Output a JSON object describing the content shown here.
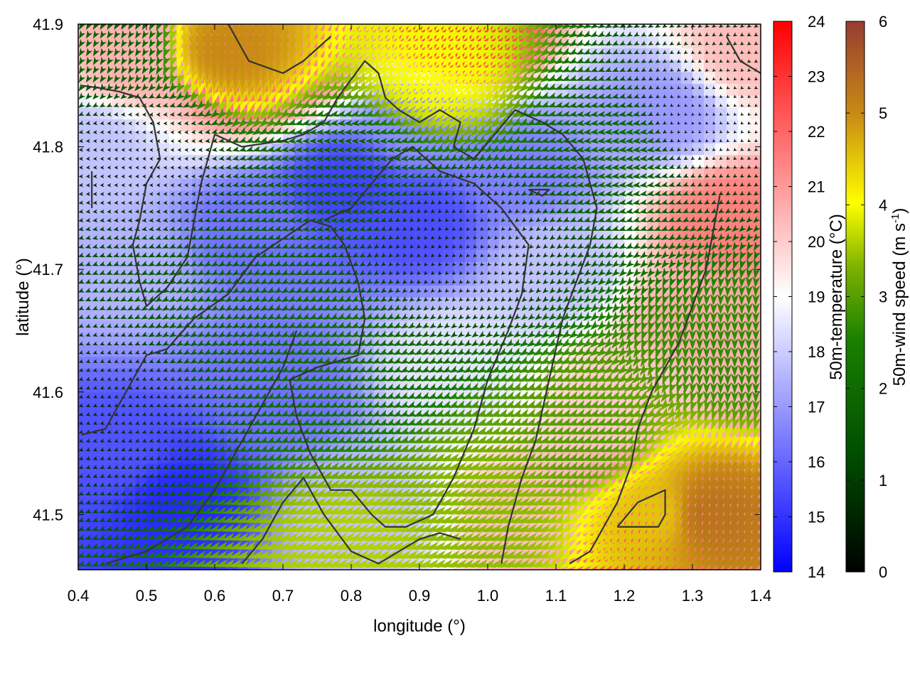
{
  "chart_data": {
    "type": "heatmap",
    "title": "",
    "xlabel": "longitude (°)",
    "ylabel": "latitude (°)",
    "xlim": [
      0.4,
      1.4
    ],
    "ylim": [
      41.455,
      41.9
    ],
    "x_ticks": [
      "0.4",
      "0.5",
      "0.6",
      "0.7",
      "0.8",
      "0.9",
      "1.0",
      "1.1",
      "1.2",
      "1.3",
      "1.4"
    ],
    "y_ticks": [
      "41.5",
      "41.6",
      "41.7",
      "41.8",
      "41.9"
    ],
    "temperature_colorbar": {
      "label": "50m-temperature (°C)",
      "range": [
        14,
        24
      ],
      "ticks": [
        "14",
        "15",
        "16",
        "17",
        "18",
        "19",
        "20",
        "21",
        "22",
        "23",
        "24"
      ],
      "colors": [
        "#0000ff",
        "#ffffff",
        "#ff0000"
      ]
    },
    "wind_colorbar": {
      "label": "50m-wind speed (m s",
      "label_superscript": "-1",
      "label_end": ")",
      "range": [
        0,
        6
      ],
      "ticks": [
        "0",
        "1",
        "2",
        "3",
        "4",
        "5",
        "6"
      ],
      "colors": [
        "#000000",
        "#005000",
        "#008000",
        "#ffff00",
        "#c86414",
        "#963c32"
      ]
    },
    "temperature_field_anomalies": [
      {
        "lon": 0.55,
        "lat": 41.51,
        "value": 14.8
      },
      {
        "lon": 0.45,
        "lat": 41.55,
        "value": 15.6
      },
      {
        "lon": 0.7,
        "lat": 41.6,
        "value": 16.2
      },
      {
        "lon": 0.79,
        "lat": 41.77,
        "value": 15.3
      },
      {
        "lon": 0.9,
        "lat": 41.74,
        "value": 15.5
      },
      {
        "lon": 0.65,
        "lat": 41.73,
        "value": 16.2
      },
      {
        "lon": 0.47,
        "lat": 41.7,
        "value": 17.5
      },
      {
        "lon": 0.42,
        "lat": 41.8,
        "value": 17.8
      },
      {
        "lon": 0.9,
        "lat": 41.82,
        "value": 16.8
      },
      {
        "lon": 1.05,
        "lat": 41.78,
        "value": 16.5
      },
      {
        "lon": 1.25,
        "lat": 41.83,
        "value": 17.0
      },
      {
        "lon": 1.1,
        "lat": 41.7,
        "value": 17.8
      },
      {
        "lon": 0.8,
        "lat": 41.5,
        "value": 17.8
      },
      {
        "lon": 0.95,
        "lat": 41.62,
        "value": 18.5
      },
      {
        "lon": 0.65,
        "lat": 41.86,
        "value": 21.8
      },
      {
        "lon": 0.72,
        "lat": 41.88,
        "value": 21.4
      },
      {
        "lon": 0.96,
        "lat": 41.89,
        "value": 22.8
      },
      {
        "lon": 0.48,
        "lat": 41.87,
        "value": 20.5
      },
      {
        "lon": 1.35,
        "lat": 41.74,
        "value": 21.5
      },
      {
        "lon": 1.3,
        "lat": 41.66,
        "value": 20.6
      },
      {
        "lon": 1.2,
        "lat": 41.6,
        "value": 20.0
      },
      {
        "lon": 1.28,
        "lat": 41.5,
        "value": 21.4
      },
      {
        "lon": 1.22,
        "lat": 41.47,
        "value": 22.3
      },
      {
        "lon": 1.08,
        "lat": 41.5,
        "value": 20.3
      },
      {
        "lon": 1.38,
        "lat": 41.88,
        "value": 20.3
      }
    ],
    "wind_zones": [
      {
        "lon": 0.92,
        "lat": 41.86,
        "speed": 4.0,
        "dir_deg": 230
      },
      {
        "lon": 0.62,
        "lat": 41.88,
        "speed": 5.0,
        "dir_deg": 270
      },
      {
        "lon": 0.8,
        "lat": 41.47,
        "speed": 3.6,
        "dir_deg": 190
      },
      {
        "lon": 1.0,
        "lat": 41.5,
        "speed": 3.4,
        "dir_deg": 190
      },
      {
        "lon": 1.25,
        "lat": 41.5,
        "speed": 4.5,
        "dir_deg": 235
      },
      {
        "lon": 1.32,
        "lat": 41.5,
        "speed": 5.3,
        "dir_deg": 240
      },
      {
        "lon": 1.15,
        "lat": 41.56,
        "speed": 3.0,
        "dir_deg": 200
      },
      {
        "lon": 0.78,
        "lat": 41.62,
        "speed": 2.1,
        "dir_deg": 205
      },
      {
        "lon": 0.6,
        "lat": 41.66,
        "speed": 1.8,
        "dir_deg": 210
      },
      {
        "lon": 0.8,
        "lat": 41.78,
        "speed": 1.7,
        "dir_deg": 180
      },
      {
        "lon": 1.2,
        "lat": 41.8,
        "speed": 2.0,
        "dir_deg": 185
      },
      {
        "lon": 1.37,
        "lat": 41.63,
        "speed": 2.7,
        "dir_deg": 270
      },
      {
        "lon": 0.45,
        "lat": 41.88,
        "speed": 1.8,
        "dir_deg": 240
      },
      {
        "lon": 0.5,
        "lat": 41.8,
        "speed": 0.6,
        "dir_deg": 180
      },
      {
        "lon": 0.95,
        "lat": 41.72,
        "speed": 0.7,
        "dir_deg": 225
      },
      {
        "lon": 0.45,
        "lat": 41.6,
        "speed": 0.8,
        "dir_deg": 200
      },
      {
        "lon": 1.3,
        "lat": 41.82,
        "speed": 0.4,
        "dir_deg": 220
      }
    ],
    "coastlines": [
      [
        [
          0.405,
          41.85
        ],
        [
          0.43,
          41.848
        ],
        [
          0.46,
          41.845
        ],
        [
          0.49,
          41.84
        ],
        [
          0.51,
          41.82
        ],
        [
          0.52,
          41.79
        ],
        [
          0.5,
          41.77
        ],
        [
          0.49,
          41.74
        ],
        [
          0.48,
          41.72
        ],
        [
          0.49,
          41.69
        ],
        [
          0.5,
          41.67
        ],
        [
          0.53,
          41.685
        ],
        [
          0.56,
          41.71
        ],
        [
          0.58,
          41.77
        ],
        [
          0.6,
          41.81
        ],
        [
          0.64,
          41.8
        ],
        [
          0.7,
          41.805
        ],
        [
          0.73,
          41.81
        ],
        [
          0.76,
          41.82
        ],
        [
          0.78,
          41.84
        ],
        [
          0.8,
          41.855
        ],
        [
          0.82,
          41.87
        ],
        [
          0.84,
          41.86
        ],
        [
          0.85,
          41.84
        ],
        [
          0.87,
          41.83
        ],
        [
          0.9,
          41.82
        ],
        [
          0.93,
          41.83
        ],
        [
          0.96,
          41.82
        ],
        [
          0.95,
          41.8
        ],
        [
          0.98,
          41.79
        ],
        [
          1.01,
          41.81
        ],
        [
          1.04,
          41.83
        ],
        [
          1.08,
          41.82
        ],
        [
          1.11,
          41.81
        ],
        [
          1.14,
          41.79
        ],
        [
          1.16,
          41.75
        ],
        [
          1.15,
          41.72
        ],
        [
          1.13,
          41.69
        ],
        [
          1.11,
          41.66
        ],
        [
          1.09,
          41.61
        ],
        [
          1.07,
          41.56
        ],
        [
          1.05,
          41.53
        ],
        [
          1.03,
          41.49
        ],
        [
          1.02,
          41.46
        ]
      ],
      [
        [
          0.405,
          41.565
        ],
        [
          0.44,
          41.57
        ],
        [
          0.46,
          41.59
        ],
        [
          0.48,
          41.61
        ],
        [
          0.5,
          41.63
        ],
        [
          0.53,
          41.635
        ],
        [
          0.57,
          41.66
        ],
        [
          0.62,
          41.68
        ],
        [
          0.66,
          41.71
        ],
        [
          0.7,
          41.725
        ],
        [
          0.74,
          41.74
        ],
        [
          0.77,
          41.735
        ],
        [
          0.79,
          41.72
        ],
        [
          0.81,
          41.69
        ],
        [
          0.82,
          41.66
        ],
        [
          0.81,
          41.63
        ],
        [
          0.75,
          41.62
        ],
        [
          0.71,
          41.61
        ],
        [
          0.72,
          41.58
        ],
        [
          0.74,
          41.55
        ],
        [
          0.77,
          41.52
        ],
        [
          0.8,
          41.52
        ],
        [
          0.83,
          41.5
        ],
        [
          0.85,
          41.49
        ],
        [
          0.88,
          41.49
        ],
        [
          0.92,
          41.5
        ],
        [
          0.95,
          41.53
        ],
        [
          0.98,
          41.57
        ],
        [
          1.0,
          41.61
        ],
        [
          1.03,
          41.65
        ],
        [
          1.05,
          41.68
        ],
        [
          1.06,
          41.72
        ],
        [
          1.02,
          41.75
        ],
        [
          0.98,
          41.77
        ],
        [
          0.93,
          41.78
        ],
        [
          0.89,
          41.8
        ],
        [
          0.86,
          41.79
        ],
        [
          0.83,
          41.77
        ],
        [
          0.8,
          41.75
        ],
        [
          0.76,
          41.74
        ]
      ],
      [
        [
          0.44,
          41.46
        ],
        [
          0.5,
          41.47
        ],
        [
          0.56,
          41.49
        ],
        [
          0.6,
          41.52
        ],
        [
          0.65,
          41.57
        ],
        [
          0.7,
          41.62
        ],
        [
          0.72,
          41.65
        ]
      ],
      [
        [
          0.64,
          41.46
        ],
        [
          0.67,
          41.48
        ],
        [
          0.7,
          41.51
        ],
        [
          0.73,
          41.53
        ],
        [
          0.76,
          41.5
        ],
        [
          0.8,
          41.47
        ],
        [
          0.84,
          41.46
        ],
        [
          0.87,
          41.47
        ],
        [
          0.9,
          41.48
        ],
        [
          0.93,
          41.485
        ],
        [
          0.96,
          41.48
        ]
      ],
      [
        [
          1.34,
          41.76
        ],
        [
          1.33,
          41.73
        ],
        [
          1.32,
          41.7
        ],
        [
          1.3,
          41.67
        ],
        [
          1.28,
          41.64
        ],
        [
          1.26,
          41.62
        ],
        [
          1.24,
          41.6
        ],
        [
          1.22,
          41.57
        ],
        [
          1.21,
          41.54
        ],
        [
          1.19,
          41.51
        ],
        [
          1.17,
          41.49
        ],
        [
          1.15,
          41.47
        ],
        [
          1.12,
          41.46
        ]
      ],
      [
        [
          1.19,
          41.49
        ],
        [
          1.22,
          41.51
        ],
        [
          1.26,
          41.52
        ],
        [
          1.26,
          41.5
        ],
        [
          1.25,
          41.49
        ],
        [
          1.19,
          41.49
        ]
      ],
      [
        [
          1.06,
          41.765
        ],
        [
          1.09,
          41.765
        ],
        [
          1.08,
          41.76
        ],
        [
          1.06,
          41.765
        ]
      ],
      [
        [
          1.35,
          41.89
        ],
        [
          1.37,
          41.87
        ],
        [
          1.4,
          41.86
        ]
      ],
      [
        [
          0.62,
          41.9
        ],
        [
          0.65,
          41.87
        ],
        [
          0.7,
          41.86
        ],
        [
          0.73,
          41.87
        ],
        [
          0.75,
          41.88
        ],
        [
          0.77,
          41.89
        ]
      ],
      [
        [
          0.42,
          41.78
        ],
        [
          0.42,
          41.75
        ]
      ]
    ]
  }
}
